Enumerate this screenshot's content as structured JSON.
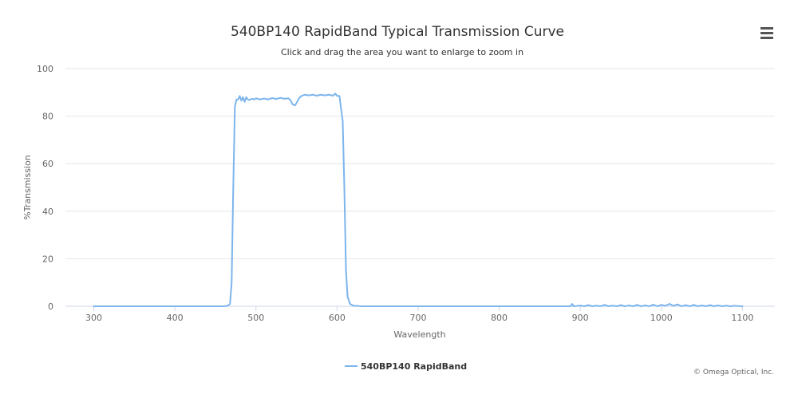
{
  "chart_data": {
    "type": "line",
    "title": "540BP140 RapidBand Typical Transmission Curve",
    "subtitle": "Click and drag the area you want to enlarge to zoom in",
    "xlabel": "Wavelength",
    "ylabel": "%Transmission",
    "xlim": [
      265,
      1140
    ],
    "ylim": [
      0,
      100
    ],
    "x_ticks": [
      300,
      400,
      500,
      600,
      700,
      800,
      900,
      1000,
      1100
    ],
    "y_ticks": [
      0,
      20,
      40,
      60,
      80,
      100
    ],
    "grid": "horizontal",
    "legend_position": "bottom-center",
    "series": [
      {
        "name": "540BP140 RapidBand",
        "color": "#7cb5ec",
        "points": [
          [
            300,
            0
          ],
          [
            400,
            0
          ],
          [
            460,
            0
          ],
          [
            465,
            0.2
          ],
          [
            468,
            1
          ],
          [
            470,
            10
          ],
          [
            472,
            50
          ],
          [
            474,
            84
          ],
          [
            476,
            87
          ],
          [
            478,
            87
          ],
          [
            480,
            88.5
          ],
          [
            482,
            86.5
          ],
          [
            484,
            88
          ],
          [
            486,
            86
          ],
          [
            488,
            88
          ],
          [
            490,
            87
          ],
          [
            492,
            86.8
          ],
          [
            495,
            87.3
          ],
          [
            498,
            87
          ],
          [
            500,
            87.5
          ],
          [
            505,
            87
          ],
          [
            510,
            87.4
          ],
          [
            515,
            87
          ],
          [
            520,
            87.6
          ],
          [
            525,
            87.2
          ],
          [
            530,
            87.7
          ],
          [
            535,
            87.3
          ],
          [
            540,
            87.5
          ],
          [
            543,
            86.5
          ],
          [
            545,
            85
          ],
          [
            548,
            84.5
          ],
          [
            550,
            85.5
          ],
          [
            553,
            87.5
          ],
          [
            556,
            88.5
          ],
          [
            560,
            89
          ],
          [
            565,
            88.7
          ],
          [
            570,
            89
          ],
          [
            575,
            88.6
          ],
          [
            580,
            89
          ],
          [
            585,
            88.7
          ],
          [
            590,
            89
          ],
          [
            595,
            88.6
          ],
          [
            598,
            89.5
          ],
          [
            600,
            88.5
          ],
          [
            603,
            88.5
          ],
          [
            605,
            83
          ],
          [
            607,
            78
          ],
          [
            609,
            50
          ],
          [
            611,
            15
          ],
          [
            613,
            4
          ],
          [
            616,
            1
          ],
          [
            620,
            0.3
          ],
          [
            630,
            0
          ],
          [
            700,
            0
          ],
          [
            800,
            0
          ],
          [
            888,
            0
          ],
          [
            890,
            1
          ],
          [
            892,
            0
          ],
          [
            900,
            0.3
          ],
          [
            905,
            0
          ],
          [
            910,
            0.5
          ],
          [
            915,
            0
          ],
          [
            920,
            0.3
          ],
          [
            925,
            0
          ],
          [
            930,
            0.6
          ],
          [
            935,
            0
          ],
          [
            940,
            0.3
          ],
          [
            945,
            0
          ],
          [
            950,
            0.5
          ],
          [
            955,
            0
          ],
          [
            960,
            0.4
          ],
          [
            965,
            0
          ],
          [
            970,
            0.6
          ],
          [
            975,
            0
          ],
          [
            980,
            0.4
          ],
          [
            985,
            0
          ],
          [
            990,
            0.7
          ],
          [
            995,
            0
          ],
          [
            1000,
            0.6
          ],
          [
            1005,
            0.2
          ],
          [
            1010,
            1
          ],
          [
            1015,
            0.2
          ],
          [
            1020,
            0.8
          ],
          [
            1025,
            0
          ],
          [
            1030,
            0.5
          ],
          [
            1035,
            0
          ],
          [
            1040,
            0.6
          ],
          [
            1045,
            0
          ],
          [
            1050,
            0.4
          ],
          [
            1055,
            0
          ],
          [
            1060,
            0.5
          ],
          [
            1065,
            0
          ],
          [
            1070,
            0.4
          ],
          [
            1075,
            0
          ],
          [
            1080,
            0.3
          ],
          [
            1085,
            0
          ],
          [
            1090,
            0.2
          ],
          [
            1100,
            0
          ]
        ]
      }
    ]
  },
  "credit": "© Omega Optical, Inc.",
  "colors": {
    "series": "#7cb5ec",
    "grid": "#e6e6e6",
    "axis": "#ccd6eb",
    "text": "#333333",
    "muted": "#666666"
  },
  "menu_icon": "hamburger-menu-icon"
}
